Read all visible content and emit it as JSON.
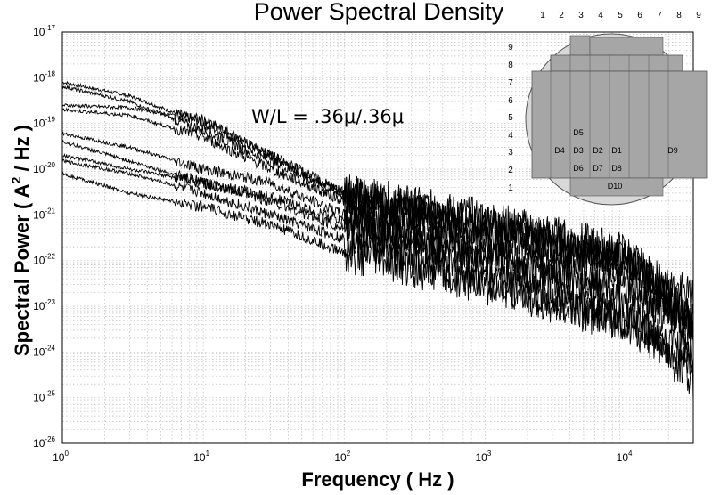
{
  "chart_data": {
    "type": "line",
    "title": "Power Spectral Density",
    "xlabel": "Frequency ( Hz )",
    "ylabel_parts": [
      "Spectral Power ( A",
      "2",
      " / Hz )"
    ],
    "x_scale": "log",
    "y_scale": "log",
    "xlim": [
      1,
      30000
    ],
    "ylim": [
      1e-26,
      1e-17
    ],
    "x_ticks": [
      {
        "base": "10",
        "exp": "0"
      },
      {
        "base": "10",
        "exp": "1"
      },
      {
        "base": "10",
        "exp": "2"
      },
      {
        "base": "10",
        "exp": "3"
      },
      {
        "base": "10",
        "exp": "4"
      }
    ],
    "y_ticks": [
      {
        "base": "10",
        "exp": "-17"
      },
      {
        "base": "10",
        "exp": "-18"
      },
      {
        "base": "10",
        "exp": "-19"
      },
      {
        "base": "10",
        "exp": "-20"
      },
      {
        "base": "10",
        "exp": "-21"
      },
      {
        "base": "10",
        "exp": "-22"
      },
      {
        "base": "10",
        "exp": "-23"
      },
      {
        "base": "10",
        "exp": "-24"
      },
      {
        "base": "10",
        "exp": "-25"
      },
      {
        "base": "10",
        "exp": "-26"
      }
    ],
    "grid": true,
    "annotation": "W/L = .36μ/.36μ",
    "series": [
      {
        "points": [
          [
            1,
            8e-19
          ],
          [
            3,
            4e-19
          ],
          [
            10,
            1e-19
          ],
          [
            30,
            2e-20
          ],
          [
            100,
            3e-21
          ],
          [
            1000,
            8e-22
          ],
          [
            10000,
            1.5e-22
          ],
          [
            30000,
            5e-24
          ]
        ]
      },
      {
        "points": [
          [
            1,
            6.5e-19
          ],
          [
            3,
            3e-19
          ],
          [
            10,
            7e-20
          ],
          [
            30,
            1.5e-20
          ],
          [
            100,
            2.5e-21
          ],
          [
            1000,
            6e-22
          ],
          [
            10000,
            1.2e-22
          ],
          [
            30000,
            4e-24
          ]
        ]
      },
      {
        "points": [
          [
            1,
            2.5e-19
          ],
          [
            3,
            2.2e-19
          ],
          [
            10,
            1.2e-19
          ],
          [
            30,
            2e-20
          ],
          [
            100,
            3e-21
          ],
          [
            1000,
            5e-22
          ],
          [
            10000,
            1e-22
          ],
          [
            30000,
            3e-24
          ]
        ]
      },
      {
        "points": [
          [
            1,
            2e-19
          ],
          [
            3,
            1.5e-19
          ],
          [
            10,
            5e-20
          ],
          [
            30,
            1e-20
          ],
          [
            100,
            2e-21
          ],
          [
            1000,
            4e-22
          ],
          [
            10000,
            8e-23
          ],
          [
            30000,
            1.5e-23
          ]
        ]
      },
      {
        "points": [
          [
            1,
            6e-20
          ],
          [
            3,
            3e-20
          ],
          [
            10,
            1e-20
          ],
          [
            30,
            5e-21
          ],
          [
            100,
            1e-21
          ],
          [
            1000,
            2e-22
          ],
          [
            10000,
            3e-23
          ],
          [
            30000,
            5e-24
          ]
        ]
      },
      {
        "points": [
          [
            1,
            4e-20
          ],
          [
            3,
            1.5e-20
          ],
          [
            10,
            5e-21
          ],
          [
            30,
            2.5e-21
          ],
          [
            100,
            7e-22
          ],
          [
            1000,
            1.5e-22
          ],
          [
            10000,
            2e-23
          ],
          [
            30000,
            3e-24
          ]
        ]
      },
      {
        "points": [
          [
            1,
            1.5e-20
          ],
          [
            3,
            8e-21
          ],
          [
            10,
            3e-21
          ],
          [
            30,
            1e-21
          ],
          [
            100,
            3e-22
          ],
          [
            1000,
            4e-23
          ],
          [
            10000,
            5e-24
          ],
          [
            30000,
            1e-24
          ]
        ]
      },
      {
        "points": [
          [
            1,
            2e-20
          ],
          [
            3,
            1e-20
          ],
          [
            10,
            5e-21
          ],
          [
            30,
            2e-21
          ],
          [
            100,
            5e-22
          ],
          [
            1000,
            8e-23
          ],
          [
            10000,
            1e-23
          ],
          [
            30000,
            2e-25
          ]
        ]
      },
      {
        "points": [
          [
            1,
            8e-21
          ],
          [
            3,
            3e-21
          ],
          [
            10,
            1.5e-21
          ],
          [
            30,
            6e-22
          ],
          [
            100,
            1.5e-22
          ],
          [
            1000,
            3e-23
          ],
          [
            10000,
            4e-24
          ],
          [
            30000,
            5e-25
          ]
        ]
      }
    ]
  },
  "inset": {
    "column_numbers": [
      "1",
      "2",
      "3",
      "4",
      "5",
      "6",
      "7",
      "8",
      "9"
    ],
    "row_numbers": [
      "9",
      "8",
      "7",
      "6",
      "5",
      "4",
      "3",
      "2",
      "1"
    ],
    "die_labels": [
      "D5",
      "D4",
      "D3",
      "D2",
      "D1",
      "D9",
      "D6",
      "D7",
      "D8",
      "D10"
    ],
    "colors": {
      "wafer": "#d8d8d8",
      "die": "#a6a6a6",
      "edge": "#555555"
    }
  }
}
